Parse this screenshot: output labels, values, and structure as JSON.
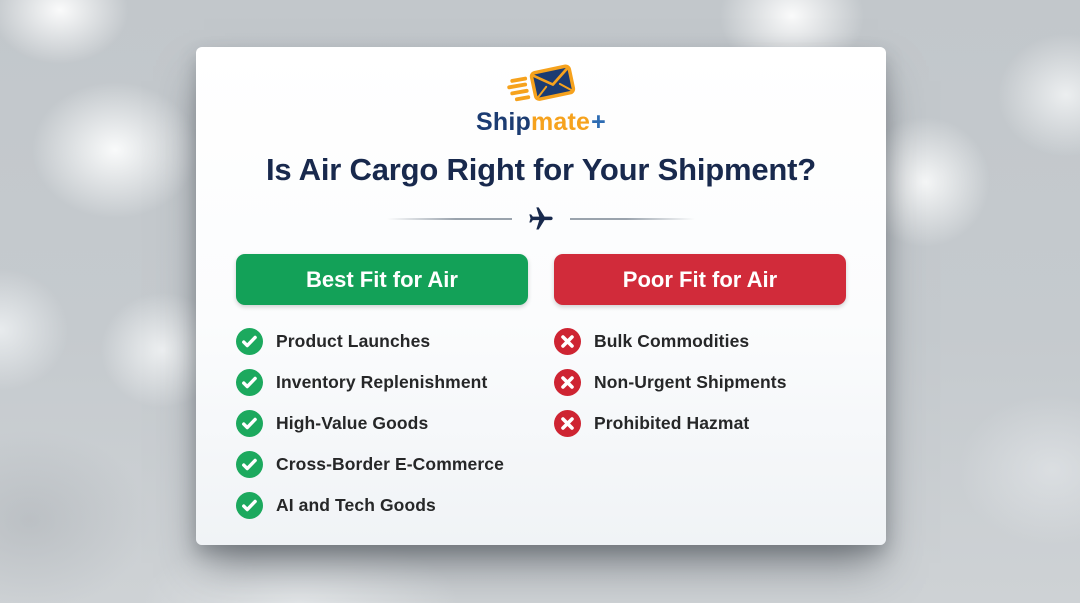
{
  "logo": {
    "brand_ship": "Ship",
    "brand_mate": "mate",
    "brand_plus": "+"
  },
  "heading": "Is Air Cargo Right for Your Shipment?",
  "columns": {
    "best": {
      "header": "Best Fit for Air",
      "items": [
        "Product Launches",
        "Inventory Replenishment",
        "High-Value Goods",
        "Cross-Border E-Commerce",
        "AI and Tech Goods"
      ]
    },
    "poor": {
      "header": "Poor Fit for Air",
      "items": [
        "Bulk Commodities",
        "Non-Urgent Shipments",
        "Prohibited Hazmat"
      ]
    }
  },
  "icons": {
    "logo_icon": "speeding-envelope",
    "divider_icon": "airplane",
    "best_item_icon": "check-circle",
    "poor_item_icon": "x-circle"
  },
  "colors": {
    "green": "#13A158",
    "red": "#D12B3A",
    "icon_green": "#1CA95E",
    "icon_red": "#CE2432",
    "navy": "#1C3C72",
    "navy_dark": "#18294D",
    "orange": "#F6A21D",
    "blue_plus": "#2D6CB3"
  }
}
